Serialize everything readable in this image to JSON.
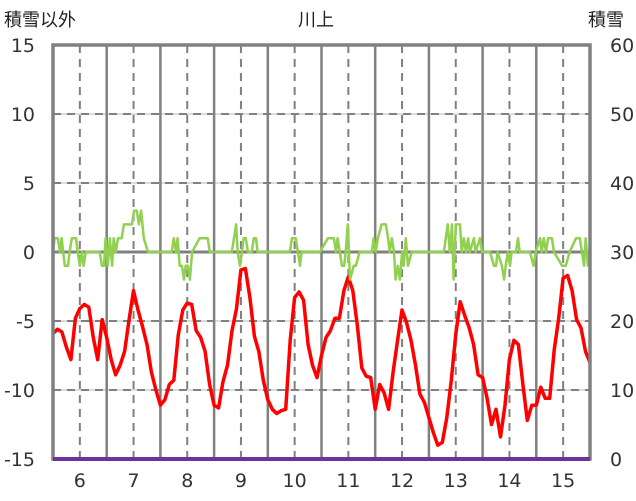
{
  "chart_data": {
    "type": "line",
    "title": "川上",
    "ylabel_left": "積雪以外",
    "ylabel_right": "積雪",
    "xlim": [
      5.5,
      15.5
    ],
    "ylim_left": [
      -15,
      15
    ],
    "ylim_right": [
      0,
      60
    ],
    "yticks_left": [
      15,
      10,
      5,
      0,
      -5,
      -10,
      -15
    ],
    "yticks_right": [
      60,
      50,
      40,
      30,
      20,
      10,
      0
    ],
    "xticks": [
      6,
      7,
      8,
      9,
      10,
      11,
      12,
      13,
      14,
      15
    ],
    "grid": "on",
    "colors": {
      "temperature": "#ff0000",
      "other": "#92d050",
      "snow": "#7030a0",
      "frame": "#808080"
    },
    "series": [
      {
        "name": "temperature",
        "axis": "left",
        "x_start": 5.5,
        "x_step_days": 0.083333,
        "values": [
          -5.9,
          -5.6,
          -5.8,
          -6.9,
          -7.8,
          -4.8,
          -4.1,
          -3.8,
          -4.0,
          -6.2,
          -7.8,
          -4.9,
          -6.2,
          -7.8,
          -8.9,
          -8.2,
          -7.2,
          -4.9,
          -2.8,
          -4.2,
          -5.4,
          -6.7,
          -8.7,
          -10.0,
          -11.1,
          -10.7,
          -9.6,
          -9.3,
          -6.0,
          -4.2,
          -3.7,
          -3.8,
          -5.7,
          -6.2,
          -7.2,
          -9.6,
          -11.1,
          -11.3,
          -9.4,
          -8.2,
          -5.7,
          -4.1,
          -1.3,
          -1.2,
          -3.3,
          -6.1,
          -7.2,
          -9.3,
          -10.7,
          -11.4,
          -11.7,
          -11.5,
          -11.4,
          -6.4,
          -3.3,
          -2.9,
          -3.5,
          -6.7,
          -8.2,
          -9.1,
          -7.5,
          -6.2,
          -5.7,
          -4.8,
          -4.8,
          -2.8,
          -1.8,
          -2.8,
          -5.3,
          -8.4,
          -9.0,
          -9.1,
          -11.4,
          -9.6,
          -10.2,
          -11.4,
          -8.7,
          -6.4,
          -4.2,
          -5.1,
          -6.4,
          -8.2,
          -10.3,
          -10.9,
          -12.0,
          -13.1,
          -14.0,
          -13.8,
          -12.0,
          -9.3,
          -6.0,
          -3.6,
          -4.6,
          -5.5,
          -6.7,
          -8.9,
          -9.1,
          -10.6,
          -12.5,
          -11.4,
          -13.4,
          -11.1,
          -7.8,
          -6.4,
          -6.7,
          -9.6,
          -12.2,
          -11.1,
          -11.1,
          -9.8,
          -10.6,
          -10.6,
          -7.1,
          -4.8,
          -1.9,
          -1.7,
          -2.8,
          -4.9,
          -5.5,
          -7.2,
          -8.0
        ]
      },
      {
        "name": "other",
        "axis": "left",
        "points": [
          [
            5.5,
            0
          ],
          [
            5.53,
            1
          ],
          [
            5.59,
            1
          ],
          [
            5.63,
            0
          ],
          [
            5.66,
            1
          ],
          [
            5.72,
            -1
          ],
          [
            5.78,
            -1
          ],
          [
            5.81,
            0
          ],
          [
            5.85,
            1
          ],
          [
            5.93,
            1
          ],
          [
            5.96,
            0
          ],
          [
            6.0,
            -1
          ],
          [
            6.04,
            0
          ],
          [
            6.07,
            -1
          ],
          [
            6.11,
            0
          ],
          [
            6.37,
            0
          ],
          [
            6.41,
            -1
          ],
          [
            6.45,
            -1
          ],
          [
            6.48,
            1
          ],
          [
            6.52,
            -1
          ],
          [
            6.56,
            1
          ],
          [
            6.6,
            -1
          ],
          [
            6.63,
            1
          ],
          [
            6.67,
            0
          ],
          [
            6.71,
            1
          ],
          [
            6.78,
            1
          ],
          [
            6.82,
            2
          ],
          [
            6.97,
            2
          ],
          [
            7.01,
            3
          ],
          [
            7.06,
            3
          ],
          [
            7.1,
            2
          ],
          [
            7.14,
            3
          ],
          [
            7.19,
            1
          ],
          [
            7.27,
            0
          ],
          [
            7.71,
            0
          ],
          [
            7.75,
            1
          ],
          [
            7.79,
            0
          ],
          [
            7.82,
            1
          ],
          [
            7.86,
            -1
          ],
          [
            7.9,
            -1
          ],
          [
            7.94,
            -2
          ],
          [
            7.97,
            -1
          ],
          [
            8.01,
            -1
          ],
          [
            8.05,
            -2
          ],
          [
            8.09,
            0
          ],
          [
            8.23,
            1
          ],
          [
            8.38,
            1
          ],
          [
            8.42,
            0
          ],
          [
            8.83,
            0
          ],
          [
            8.87,
            1
          ],
          [
            8.91,
            2
          ],
          [
            8.94,
            0
          ],
          [
            8.98,
            -1
          ],
          [
            9.02,
            0
          ],
          [
            9.05,
            1
          ],
          [
            9.09,
            1
          ],
          [
            9.13,
            0
          ],
          [
            9.2,
            0
          ],
          [
            9.24,
            1
          ],
          [
            9.28,
            1
          ],
          [
            9.31,
            0
          ],
          [
            9.91,
            0
          ],
          [
            9.95,
            1
          ],
          [
            10.02,
            1
          ],
          [
            10.06,
            0
          ],
          [
            10.1,
            -1
          ],
          [
            10.13,
            0
          ],
          [
            10.47,
            0
          ],
          [
            10.62,
            1
          ],
          [
            10.73,
            1
          ],
          [
            10.77,
            0
          ],
          [
            10.8,
            1
          ],
          [
            10.84,
            0
          ],
          [
            10.88,
            -1
          ],
          [
            10.92,
            -1
          ],
          [
            10.95,
            0
          ],
          [
            10.99,
            2
          ],
          [
            11.03,
            -2
          ],
          [
            11.1,
            -1
          ],
          [
            11.14,
            -1
          ],
          [
            11.21,
            0
          ],
          [
            11.44,
            0
          ],
          [
            11.47,
            1
          ],
          [
            11.51,
            0
          ],
          [
            11.55,
            1
          ],
          [
            11.62,
            2
          ],
          [
            11.7,
            2
          ],
          [
            11.74,
            1
          ],
          [
            11.77,
            0
          ],
          [
            11.81,
            1
          ],
          [
            11.85,
            0
          ],
          [
            11.88,
            -2
          ],
          [
            11.92,
            -1
          ],
          [
            11.96,
            -2
          ],
          [
            12.0,
            0
          ],
          [
            12.03,
            -1
          ],
          [
            12.07,
            1
          ],
          [
            12.11,
            -1
          ],
          [
            12.18,
            0
          ],
          [
            12.78,
            0
          ],
          [
            12.85,
            2
          ],
          [
            12.89,
            0
          ],
          [
            12.93,
            2
          ],
          [
            12.96,
            -2
          ],
          [
            13.0,
            2
          ],
          [
            13.08,
            2
          ],
          [
            13.11,
            0
          ],
          [
            13.15,
            1
          ],
          [
            13.19,
            0
          ],
          [
            13.23,
            1
          ],
          [
            13.26,
            0
          ],
          [
            13.34,
            1
          ],
          [
            13.37,
            0
          ],
          [
            13.45,
            1
          ],
          [
            13.49,
            0
          ],
          [
            13.64,
            0
          ],
          [
            13.71,
            -1
          ],
          [
            13.75,
            -1
          ],
          [
            13.78,
            0
          ],
          [
            13.86,
            -1
          ],
          [
            13.9,
            -2
          ],
          [
            13.93,
            -1
          ],
          [
            13.97,
            0
          ],
          [
            14.01,
            -1
          ],
          [
            14.04,
            0
          ],
          [
            14.12,
            0
          ],
          [
            14.16,
            1
          ],
          [
            14.19,
            0
          ],
          [
            14.38,
            0
          ],
          [
            14.45,
            -1
          ],
          [
            14.49,
            0
          ],
          [
            14.57,
            1
          ],
          [
            14.6,
            0
          ],
          [
            14.64,
            1
          ],
          [
            14.68,
            0
          ],
          [
            14.72,
            1
          ],
          [
            14.79,
            1
          ],
          [
            14.83,
            0
          ],
          [
            14.98,
            -1
          ],
          [
            15.05,
            -1
          ],
          [
            15.12,
            0
          ],
          [
            15.24,
            1
          ],
          [
            15.31,
            1
          ],
          [
            15.35,
            0
          ],
          [
            15.39,
            -1
          ],
          [
            15.42,
            1
          ],
          [
            15.46,
            -1
          ],
          [
            15.5,
            0
          ]
        ]
      },
      {
        "name": "snow",
        "axis": "right",
        "points": [
          [
            5.5,
            0
          ],
          [
            15.5,
            0
          ]
        ]
      }
    ]
  }
}
